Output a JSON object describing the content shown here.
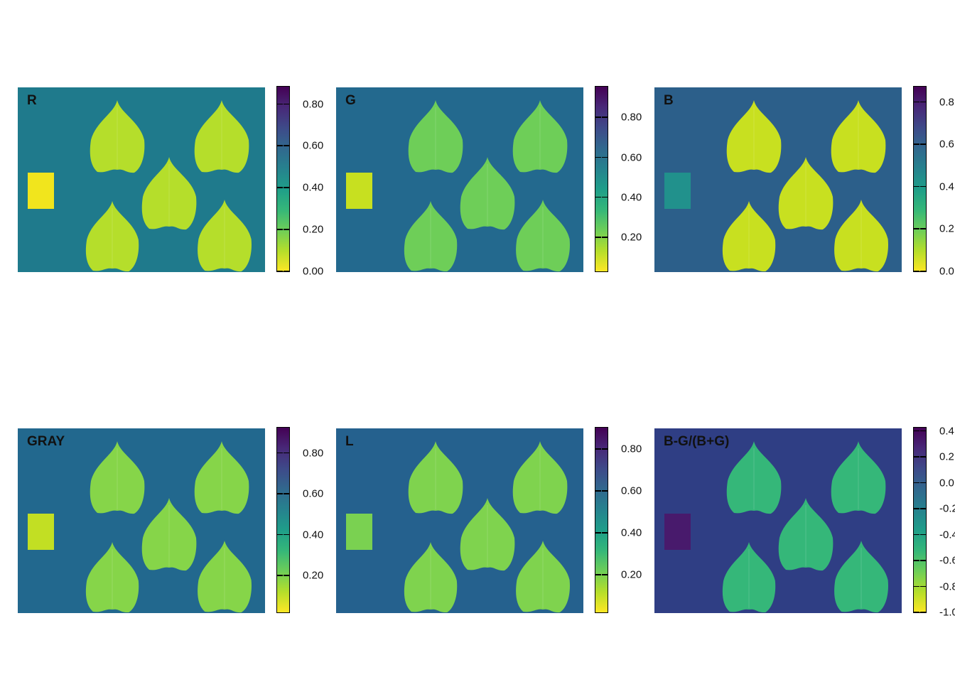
{
  "colors": {
    "background": "#1f7a8c",
    "background_dark": "#2c5288",
    "leaf_light": "#c7e020",
    "leaf_mid": "#8fd744",
    "leaf_green": "#4cc26c",
    "yellow": "#fde725",
    "teal": "#26a386",
    "purple": "#44015a"
  },
  "panels": [
    {
      "label": "R",
      "ticks": [
        "0.80",
        "0.60",
        "0.40",
        "0.20",
        "0.00"
      ],
      "tick_values": [
        0.8,
        0.6,
        0.4,
        0.2,
        0.0
      ],
      "range": [
        0.0,
        0.88
      ],
      "square_color": "#f1e51d",
      "leaf_color": "#b5de2b",
      "bg_color": "#1f7a8c"
    },
    {
      "label": "G",
      "ticks": [
        "0.80",
        "0.60",
        "0.40",
        "0.20"
      ],
      "tick_values": [
        0.8,
        0.6,
        0.4,
        0.2
      ],
      "range": [
        0.03,
        0.95
      ],
      "square_color": "#c7e020",
      "leaf_color": "#6ece58",
      "bg_color": "#23698e"
    },
    {
      "label": "B",
      "ticks": [
        "0.8",
        "0.6",
        "0.4",
        "0.2",
        "0.0"
      ],
      "tick_values": [
        0.8,
        0.6,
        0.4,
        0.2,
        0.0
      ],
      "range": [
        0.0,
        0.87
      ],
      "square_color": "#21918c",
      "leaf_color": "#c8e020",
      "bg_color": "#2c5f8a"
    },
    {
      "label": "GRAY",
      "ticks": [
        "0.80",
        "0.60",
        "0.40",
        "0.20"
      ],
      "tick_values": [
        0.8,
        0.6,
        0.4,
        0.2
      ],
      "range": [
        0.02,
        0.92
      ],
      "square_color": "#c2df23",
      "leaf_color": "#86d549",
      "bg_color": "#22688e"
    },
    {
      "label": "L",
      "ticks": [
        "0.80",
        "0.60",
        "0.40",
        "0.20"
      ],
      "tick_values": [
        0.8,
        0.6,
        0.4,
        0.2
      ],
      "range": [
        0.02,
        0.9
      ],
      "square_color": "#7ad151",
      "leaf_color": "#7fd34e",
      "bg_color": "#25618e"
    },
    {
      "label": "B-G/(B+G)",
      "ticks": [
        "0.4",
        "0.2",
        "0.0",
        "-0.2",
        "-0.4",
        "-0.6",
        "-0.8",
        "-1.0"
      ],
      "tick_values": [
        0.4,
        0.2,
        0.0,
        -0.2,
        -0.4,
        -0.6,
        -0.8,
        -1.0
      ],
      "range": [
        -1.0,
        0.42
      ],
      "square_color": "#481a6c",
      "leaf_color": "#35b779",
      "bg_color": "#2f3e84"
    }
  ]
}
